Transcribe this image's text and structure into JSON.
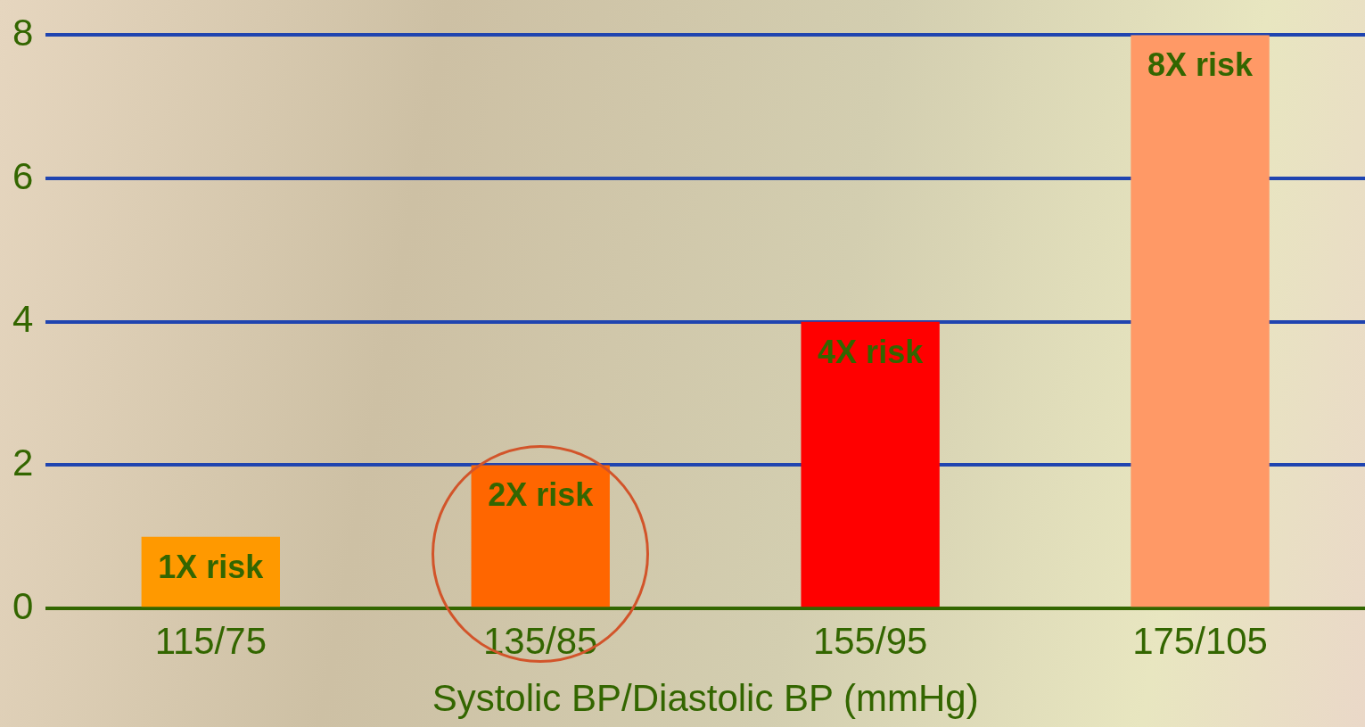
{
  "chart_data": {
    "type": "bar",
    "xlabel": "Systolic BP/Diastolic BP (mmHg)",
    "categories": [
      "115/75",
      "135/85",
      "155/95",
      "175/105"
    ],
    "values": [
      1,
      2,
      4,
      8
    ],
    "colors": [
      "#ff9900",
      "#ff6600",
      "#ff0000",
      "#ff9966"
    ],
    "value_labels": [
      "1X risk",
      "2X risk",
      "4X risk",
      "8X risk"
    ],
    "ylim": [
      0,
      8
    ],
    "yticks": [
      0,
      2,
      4,
      6,
      8
    ],
    "grid": "y",
    "legend": false
  }
}
